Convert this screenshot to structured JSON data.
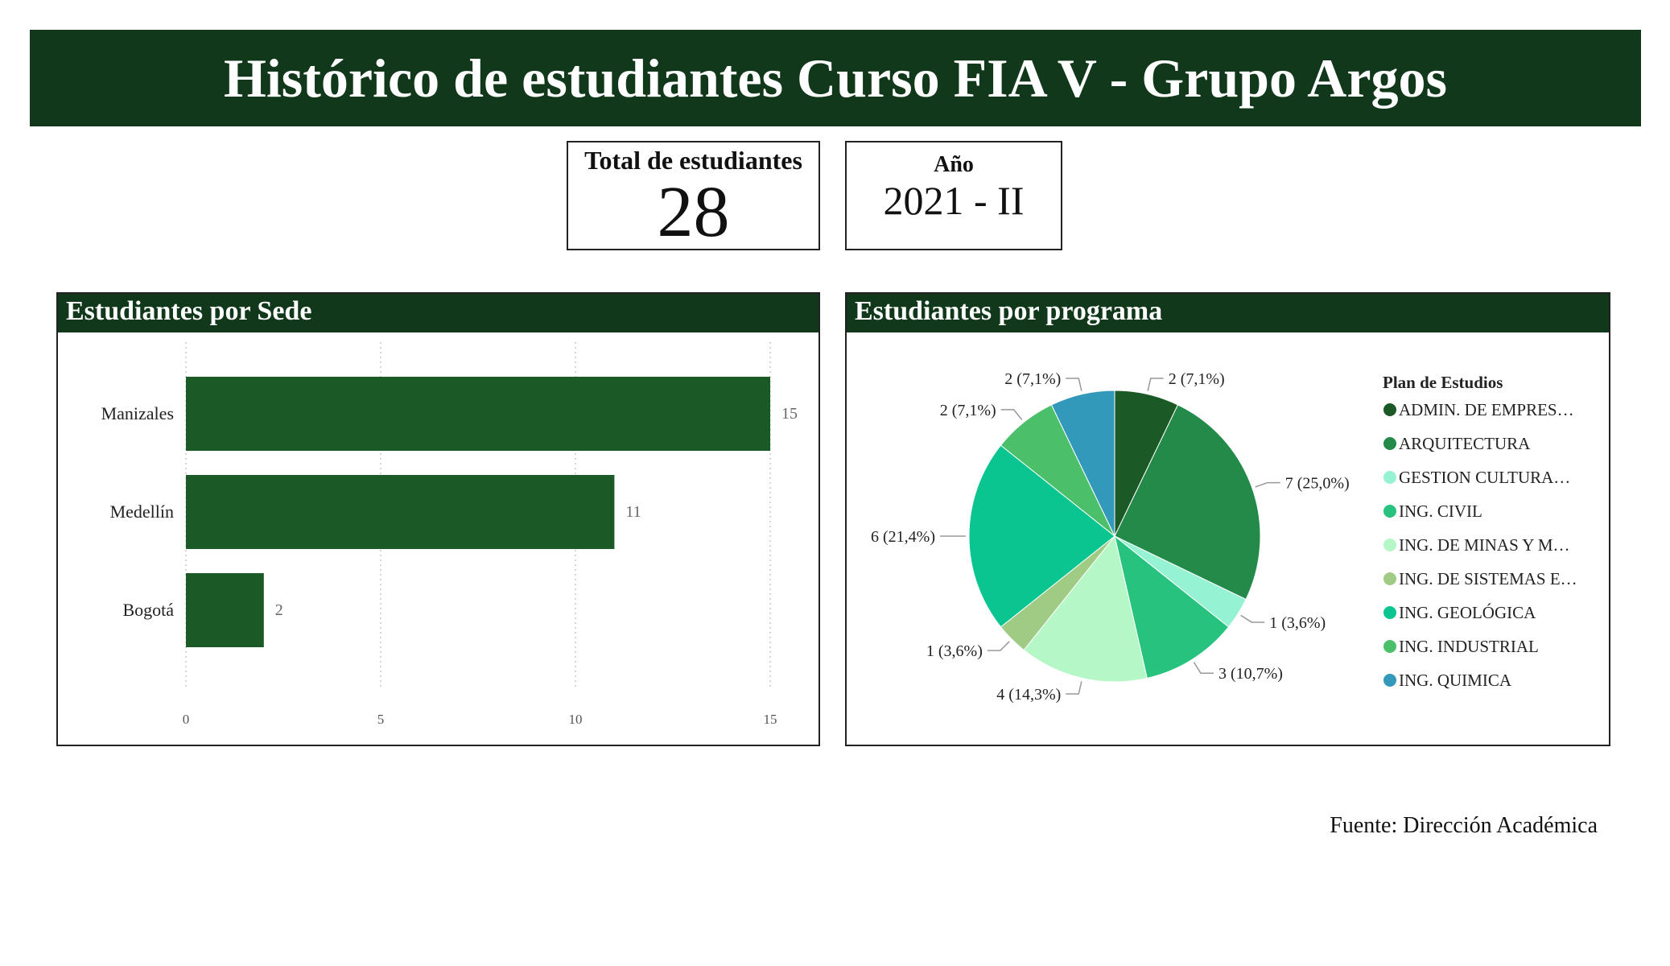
{
  "header": {
    "title": "Histórico de estudiantes Curso FIA V - Grupo Argos"
  },
  "kpis": {
    "total_label": "Total de estudiantes",
    "total_value": "28",
    "year_label": "Año",
    "year_value": "2021 - II"
  },
  "panels": {
    "sede_title": "Estudiantes por Sede",
    "programa_title": "Estudiantes por programa"
  },
  "source": "Fuente: Dirección Académica",
  "colors": {
    "header_bg": "#11381b",
    "bar": "#1b5a26"
  },
  "chart_data": [
    {
      "type": "bar",
      "orientation": "horizontal",
      "categories": [
        "Manizales",
        "Medellín",
        "Bogotá"
      ],
      "values": [
        15,
        11,
        2
      ],
      "value_labels": [
        "15",
        "11",
        "2"
      ],
      "xlim": [
        0,
        15
      ],
      "xticks": [
        0,
        5,
        10,
        15
      ],
      "grid": true
    },
    {
      "type": "pie",
      "legend_title": "Plan de Estudios",
      "legend_position": "right",
      "slices": [
        {
          "name": "ADMIN. DE EMPRES…",
          "value": 2,
          "label": "2 (7,1%)",
          "color": "#1b5a26"
        },
        {
          "name": "ARQUITECTURA",
          "value": 7,
          "label": "7 (25,0%)",
          "color": "#238a4a"
        },
        {
          "name": "GESTION CULTURA…",
          "value": 1,
          "label": "1 (3,6%)",
          "color": "#95f2d2"
        },
        {
          "name": "ING. CIVIL",
          "value": 3,
          "label": "3 (10,7%)",
          "color": "#27c27d"
        },
        {
          "name": "ING. DE MINAS Y M…",
          "value": 4,
          "label": "4 (14,3%)",
          "color": "#b6f7c8"
        },
        {
          "name": "ING. DE SISTEMAS E…",
          "value": 1,
          "label": "1 (3,6%)",
          "color": "#9fcb85"
        },
        {
          "name": "ING. GEOLÓGICA",
          "value": 6,
          "label": "6 (21,4%)",
          "color": "#0ac58f"
        },
        {
          "name": "ING. INDUSTRIAL",
          "value": 2,
          "label": "2 (7,1%)",
          "color": "#4cbf6a"
        },
        {
          "name": "ING. QUIMICA",
          "value": 2,
          "label": "2 (7,1%)",
          "color": "#3399bb"
        }
      ]
    }
  ]
}
